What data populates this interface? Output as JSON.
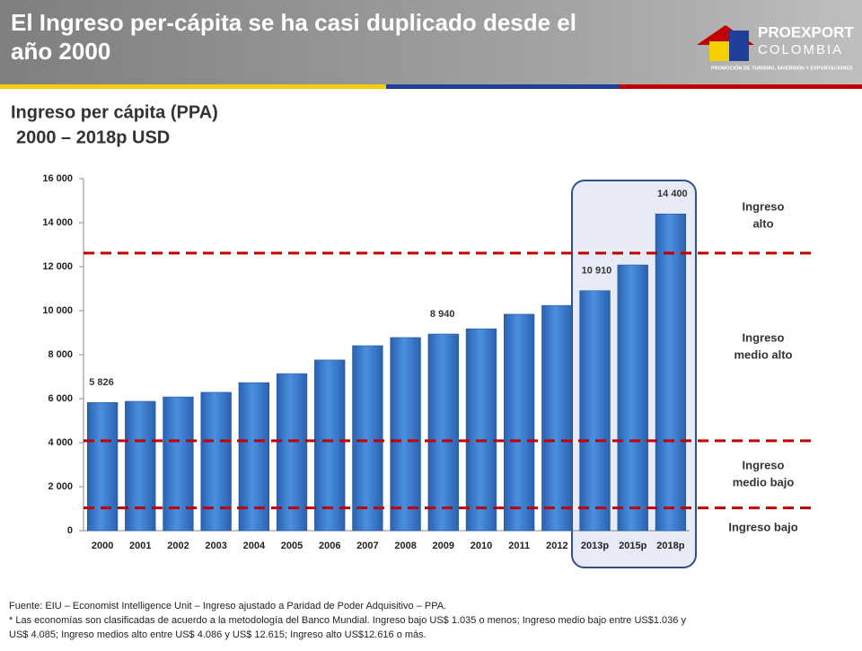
{
  "header": {
    "title_lines": [
      "El Ingreso per-cápita se ha casi duplicado desde el",
      "año 2000"
    ],
    "logo": {
      "name": "PROEXPORT",
      "subname": "COLOMBIA",
      "tagline": "PROMOCIÓN DE TURISMO, INVERSIÓN Y EXPORTACIONES"
    }
  },
  "chart_data": {
    "type": "bar",
    "title": "Ingreso per cápita (PPA)",
    "subtitle": "2000 – 2018p USD",
    "categories": [
      "2000",
      "2001",
      "2002",
      "2003",
      "2004",
      "2005",
      "2006",
      "2007",
      "2008",
      "2009",
      "2010",
      "2011",
      "2012",
      "2013p",
      "2015p",
      "2018p"
    ],
    "values": [
      5826,
      5880,
      6080,
      6290,
      6730,
      7140,
      7760,
      8410,
      8780,
      8940,
      9180,
      9840,
      10240,
      10910,
      12080,
      14400
    ],
    "value_labels": [
      "5 826",
      null,
      null,
      null,
      null,
      null,
      null,
      null,
      null,
      "8 940",
      null,
      null,
      null,
      "10 910",
      null,
      "14 400"
    ],
    "color": "#3a7fd5",
    "ylim": [
      0,
      16000
    ],
    "yticks": [
      0,
      {
        "value": 2000,
        "label": "2 000"
      },
      {
        "value": 4000,
        "label": "4 000"
      },
      {
        "value": 6000,
        "label": "6 000"
      },
      {
        "value": 8000,
        "label": "8 000"
      },
      {
        "value": 10000,
        "label": "10 000"
      },
      {
        "value": 12000,
        "label": "12 000"
      },
      {
        "value": 14000,
        "label": "14 000"
      },
      {
        "value": 16000,
        "label": "16 000"
      }
    ],
    "reference_lines": [
      1035,
      4085,
      12615
    ],
    "reference_color": "#c00000",
    "bands": [
      "Ingreso bajo",
      "Ingreso medio bajo",
      "Ingreso medio alto",
      "Ingreso alto"
    ]
  },
  "footnotes": [
    "Fuente: EIU – Economist Intelligence Unit – Ingreso ajustado a Paridad de Poder Adquisitivo – PPA.",
    "* Las economías son clasificadas de acuerdo a la metodología del Banco Mundial. Ingreso bajo US$ 1.035 o menos; Ingreso medio bajo entre US$1.036 y",
    "US$ 4.085; Ingreso medios alto entre US$ 4.086 y US$ 12.615; Ingreso alto US$12.616 o más."
  ]
}
